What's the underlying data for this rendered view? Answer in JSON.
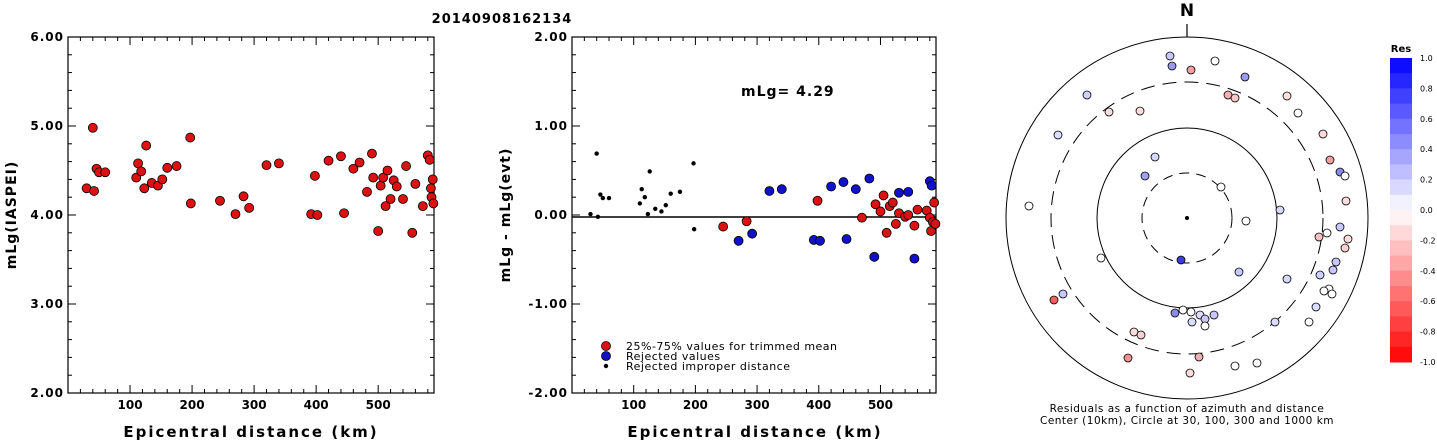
{
  "title": "20140908162134",
  "charts": {
    "left": {
      "type": "scatter",
      "ylabel": "mLg(IASPEI)",
      "xlabel": "Epicentral distance (km)",
      "xlim": [
        0,
        590
      ],
      "ylim": [
        2.0,
        6.0
      ],
      "yticks": [
        "2.00",
        "3.00",
        "4.00",
        "5.00",
        "6.00"
      ],
      "xticks": [
        "100",
        "200",
        "300",
        "400",
        "500"
      ]
    },
    "middle": {
      "type": "scatter",
      "ylabel": "mLg - mLg(evt)",
      "xlabel": "Epicentral distance (km)",
      "xlim": [
        0,
        590
      ],
      "ylim": [
        -2.0,
        2.0
      ],
      "yticks": [
        "-2.00",
        "-1.00",
        "0.00",
        "1.00",
        "2.00"
      ],
      "xticks": [
        "100",
        "200",
        "300",
        "400",
        "500"
      ],
      "annotation": "mLg= 4.29",
      "legend": [
        {
          "label": "25%-75% values for trimmed mean",
          "color": "#dd1111"
        },
        {
          "label": "Rejected values",
          "color": "#1111cc"
        },
        {
          "label": "Rejected improper distance",
          "color": "#000000"
        }
      ]
    },
    "polar": {
      "north_label": "N",
      "caption1": "Residuals as a function of azimuth and distance",
      "caption2": "Center (10km), Circle at 30, 100, 300 and 1000 km"
    },
    "colorbar": {
      "title": "Res",
      "labels": [
        "1.0",
        "0.8",
        "0.6",
        "0.4",
        "0.2",
        "0.0",
        "-0.2",
        "-0.4",
        "-0.6",
        "-0.8",
        "-1.0"
      ]
    }
  },
  "chart_data": [
    {
      "type": "scatter",
      "panel": "left",
      "x": [
        30,
        40,
        42,
        46,
        50,
        60,
        110,
        113,
        118,
        123,
        126,
        135,
        145,
        152,
        160,
        175,
        197,
        198,
        245,
        270,
        283,
        292,
        320,
        340,
        392,
        398,
        402,
        420,
        440,
        445,
        460,
        470,
        482,
        490,
        492,
        500,
        504,
        508,
        512,
        515,
        520,
        525,
        530,
        540,
        545,
        555,
        560,
        572,
        580,
        583,
        585,
        586,
        588,
        589
      ],
      "y": [
        4.3,
        4.98,
        4.27,
        4.52,
        4.48,
        4.48,
        4.42,
        4.58,
        4.49,
        4.3,
        4.78,
        4.36,
        4.33,
        4.4,
        4.53,
        4.55,
        4.87,
        4.13,
        4.16,
        4.01,
        4.21,
        4.08,
        4.56,
        4.58,
        4.01,
        4.44,
        4.0,
        4.61,
        4.66,
        4.02,
        4.52,
        4.59,
        4.26,
        4.69,
        4.42,
        3.82,
        4.33,
        4.42,
        4.1,
        4.5,
        4.18,
        4.39,
        4.32,
        4.18,
        4.55,
        3.8,
        4.35,
        4.1,
        4.67,
        4.62,
        4.3,
        4.2,
        4.4,
        4.13
      ]
    },
    {
      "type": "scatter",
      "panel": "middle",
      "series": [
        {
          "name": "25%-75% values for trimmed mean",
          "x": [
            245,
            283,
            398,
            470,
            492,
            500,
            505,
            510,
            515,
            520,
            525,
            530,
            540,
            545,
            555,
            560,
            575,
            580,
            582,
            585,
            587,
            589
          ],
          "y": [
            -0.13,
            -0.07,
            0.16,
            -0.03,
            0.12,
            0.04,
            0.22,
            -0.2,
            0.1,
            0.14,
            -0.1,
            0.02,
            -0.02,
            0.0,
            -0.12,
            0.06,
            0.05,
            -0.03,
            -0.18,
            -0.08,
            0.14,
            -0.1
          ]
        },
        {
          "name": "Rejected values",
          "x": [
            270,
            292,
            320,
            340,
            392,
            402,
            420,
            440,
            445,
            460,
            482,
            490,
            530,
            545,
            555,
            580,
            583
          ],
          "y": [
            -0.29,
            -0.21,
            0.27,
            0.29,
            -0.28,
            -0.29,
            0.32,
            0.37,
            -0.27,
            0.29,
            0.41,
            -0.47,
            0.25,
            0.26,
            -0.49,
            0.38,
            0.33
          ]
        },
        {
          "name": "Rejected improper distance",
          "x": [
            30,
            40,
            42,
            46,
            50,
            60,
            110,
            113,
            118,
            123,
            126,
            135,
            145,
            152,
            160,
            175,
            197,
            198
          ],
          "y": [
            0.01,
            0.69,
            -0.02,
            0.23,
            0.19,
            0.19,
            0.13,
            0.29,
            0.2,
            0.01,
            0.49,
            0.07,
            0.04,
            0.11,
            0.24,
            0.26,
            0.58,
            -0.16
          ]
        }
      ],
      "reference_line_y": 0.0
    }
  ]
}
